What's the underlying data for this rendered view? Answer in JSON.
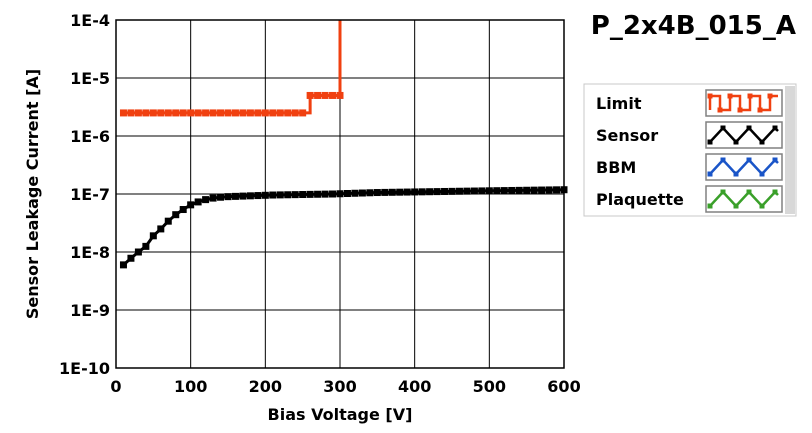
{
  "chart_data": {
    "type": "line",
    "title": "P_2x4B_015_A",
    "xlabel": "Bias Voltage [V]",
    "ylabel": "Sensor Leakage Current [A]",
    "xlim": [
      0,
      600
    ],
    "ylim": [
      1e-10,
      0.0001
    ],
    "yscale": "log",
    "grid": true,
    "legend_position": "right",
    "x_ticks": [
      0,
      100,
      200,
      300,
      400,
      500,
      600
    ],
    "x_tick_labels": [
      "0",
      "100",
      "200",
      "300",
      "400",
      "500",
      "600"
    ],
    "y_ticks": [
      1e-10,
      1e-09,
      1e-08,
      1e-07,
      1e-06,
      1e-05,
      0.0001
    ],
    "y_tick_labels": [
      "1E-10",
      "1E-9",
      "1E-8",
      "1E-7",
      "1E-6",
      "1E-5",
      "1E-4"
    ],
    "legend": [
      {
        "name": "Limit",
        "color": "#f04010",
        "pattern": "square"
      },
      {
        "name": "Sensor",
        "color": "#000000",
        "pattern": "triangle"
      },
      {
        "name": "BBM",
        "color": "#1a55c8",
        "pattern": "triangle"
      },
      {
        "name": "Plaquette",
        "color": "#3aa02a",
        "pattern": "triangle"
      }
    ],
    "series": [
      {
        "name": "Limit",
        "color": "#f04010",
        "step": true,
        "x": [
          10,
          20,
          30,
          40,
          50,
          60,
          70,
          80,
          90,
          100,
          110,
          120,
          130,
          140,
          150,
          160,
          170,
          180,
          190,
          200,
          210,
          220,
          230,
          240,
          250,
          260,
          270,
          280,
          290,
          300,
          300
        ],
        "y": [
          2.5e-06,
          2.5e-06,
          2.5e-06,
          2.5e-06,
          2.5e-06,
          2.5e-06,
          2.5e-06,
          2.5e-06,
          2.5e-06,
          2.5e-06,
          2.5e-06,
          2.5e-06,
          2.5e-06,
          2.5e-06,
          2.5e-06,
          2.5e-06,
          2.5e-06,
          2.5e-06,
          2.5e-06,
          2.5e-06,
          2.5e-06,
          2.5e-06,
          2.5e-06,
          2.5e-06,
          2.5e-06,
          5e-06,
          5e-06,
          5e-06,
          5e-06,
          5e-06,
          0.0001
        ]
      },
      {
        "name": "Sensor",
        "color": "#000000",
        "step": false,
        "x": [
          10,
          20,
          30,
          40,
          50,
          60,
          70,
          80,
          90,
          100,
          110,
          120,
          130,
          140,
          150,
          160,
          170,
          180,
          190,
          200,
          210,
          220,
          230,
          240,
          250,
          260,
          270,
          280,
          290,
          300,
          310,
          320,
          330,
          340,
          350,
          360,
          370,
          380,
          390,
          400,
          410,
          420,
          430,
          440,
          450,
          460,
          470,
          480,
          490,
          500,
          510,
          520,
          530,
          540,
          550,
          560,
          570,
          580,
          590,
          600
        ],
        "y": [
          6e-09,
          7.8e-09,
          1e-08,
          1.25e-08,
          1.9e-08,
          2.5e-08,
          3.4e-08,
          4.4e-08,
          5.4e-08,
          6.5e-08,
          7.3e-08,
          8e-08,
          8.5e-08,
          8.8e-08,
          9e-08,
          9.1e-08,
          9.2e-08,
          9.3e-08,
          9.4e-08,
          9.5e-08,
          9.6e-08,
          9.65e-08,
          9.7e-08,
          9.75e-08,
          9.8e-08,
          9.85e-08,
          9.9e-08,
          9.95e-08,
          1e-07,
          1.01e-07,
          1.02e-07,
          1.03e-07,
          1.04e-07,
          1.05e-07,
          1.06e-07,
          1.065e-07,
          1.07e-07,
          1.075e-07,
          1.08e-07,
          1.085e-07,
          1.09e-07,
          1.095e-07,
          1.1e-07,
          1.105e-07,
          1.11e-07,
          1.115e-07,
          1.12e-07,
          1.125e-07,
          1.13e-07,
          1.135e-07,
          1.14e-07,
          1.145e-07,
          1.15e-07,
          1.155e-07,
          1.16e-07,
          1.165e-07,
          1.17e-07,
          1.175e-07,
          1.18e-07,
          1.185e-07
        ]
      }
    ]
  }
}
